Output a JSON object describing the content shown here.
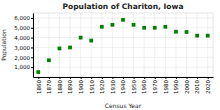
{
  "chart_data": {
    "type": "scatter",
    "title": "Population of Chariton, Iowa",
    "xlabel": "Census Year",
    "ylabel": "Population",
    "x": [
      1860,
      1870,
      1880,
      1890,
      1900,
      1910,
      1920,
      1930,
      1940,
      1950,
      1960,
      1970,
      1980,
      1990,
      2000,
      2010,
      2020
    ],
    "values": [
      500,
      1700,
      2900,
      3000,
      4000,
      3700,
      5100,
      5300,
      5800,
      5300,
      5000,
      5000,
      5100,
      4600,
      4573,
      4200,
      4200
    ],
    "color": "#008000",
    "marker": "square",
    "xlim": [
      1855,
      2025
    ],
    "xticks": [
      1860,
      1870,
      1880,
      1890,
      1900,
      1910,
      1920,
      1930,
      1940,
      1950,
      1960,
      1970,
      1980,
      1990,
      2000,
      2010,
      2020
    ],
    "ylim": [
      0,
      6500
    ],
    "yticks": [
      {
        "value": 1000,
        "label": "1,000"
      },
      {
        "value": 2000,
        "label": "2,000"
      },
      {
        "value": 3000,
        "label": "3,000"
      },
      {
        "value": 4000,
        "label": "4,000"
      },
      {
        "value": 5000,
        "label": "5,000"
      },
      {
        "value": 6000,
        "label": "6,000"
      }
    ],
    "grid": true
  }
}
